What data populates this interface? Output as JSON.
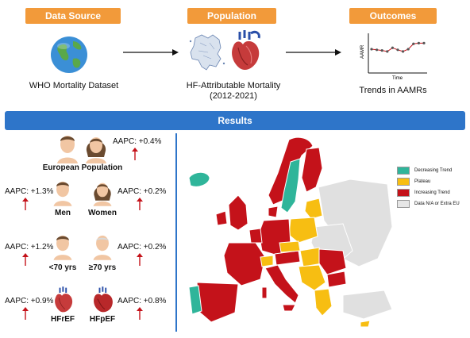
{
  "header": {
    "data_source": "Data Source",
    "population": "Population",
    "outcomes": "Outcomes"
  },
  "data_source_label": "WHO Mortality Dataset",
  "population_label_1": "HF-Attributable Mortality",
  "population_label_2": "(2012-2021)",
  "outcomes_label": "Trends in AAMRs",
  "mini_chart": {
    "ylabel": "AAMR",
    "xlabel": "Time",
    "values": [
      0.62,
      0.6,
      0.58,
      0.55,
      0.66,
      0.6,
      0.55,
      0.62,
      0.78,
      0.8,
      0.8
    ]
  },
  "results_title": "Results",
  "panels": {
    "european": {
      "aapc": "AAPC: +0.4%",
      "label": "European Population"
    },
    "men": {
      "aapc": "AAPC: +1.3%",
      "label": "Men"
    },
    "women": {
      "aapc": "AAPC: +0.2%",
      "label": "Women"
    },
    "under70": {
      "aapc": "AAPC: +1.2%",
      "label": "<70 yrs"
    },
    "over70": {
      "aapc": "AAPC: +0.2%",
      "label": "≥70 yrs"
    },
    "hfref": {
      "aapc": "AAPC: +0.9%",
      "label": "HFrEF"
    },
    "hfpef": {
      "aapc": "AAPC: +0.8%",
      "label": "HFpEF"
    }
  },
  "legend": [
    {
      "label": "Decreasing Trend",
      "color": "#2fb59a"
    },
    {
      "label": "Plateau",
      "color": "#f7be12"
    },
    {
      "label": "Increasing Trend",
      "color": "#c4121a"
    },
    {
      "label": "Data N/A or Extra EU",
      "color": "#e6e6e6"
    }
  ],
  "colors": {
    "header_orange": "#f29a3a",
    "results_blue": "#2e75c9",
    "arrow_red": "#c4121a",
    "globe_blue": "#3b8fd6",
    "globe_green": "#5aa84a"
  },
  "icons": [
    "globe-icon",
    "europe-map-icon",
    "heart-icon",
    "line-chart-icon",
    "man-icon",
    "woman-icon",
    "young-man-icon",
    "old-man-icon",
    "heart-icon"
  ]
}
